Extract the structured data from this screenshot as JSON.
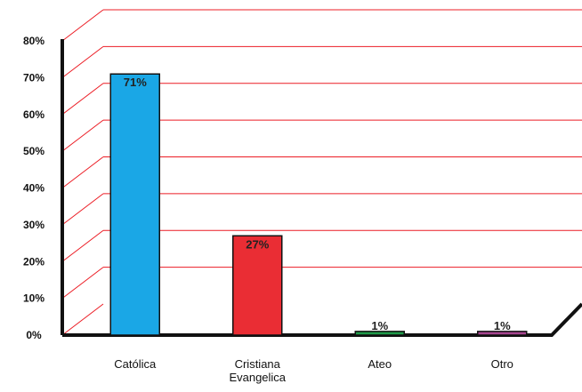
{
  "chart_data": {
    "type": "bar",
    "categories": [
      "Católica",
      "Cristiana Evangelica",
      "Ateo",
      "Otro"
    ],
    "category_lines": [
      [
        "Católica"
      ],
      [
        "Cristiana",
        "Evangelica"
      ],
      [
        "Ateo"
      ],
      [
        "Otro"
      ]
    ],
    "values": [
      71,
      27,
      1,
      1
    ],
    "data_labels": [
      "71%",
      "27%",
      "1%",
      "1%"
    ],
    "bar_colors": [
      "#1aa7e6",
      "#ea2d34",
      "#1f9a49",
      "#a6448f"
    ],
    "y_ticks": [
      "0%",
      "10%",
      "20%",
      "30%",
      "40%",
      "50%",
      "60%",
      "70%",
      "80%"
    ],
    "y_tick_values": [
      0,
      10,
      20,
      30,
      40,
      50,
      60,
      70,
      80
    ],
    "ylim": [
      0,
      80
    ],
    "grid": true,
    "grid_color": "#ec1c24",
    "title": "",
    "xlabel": "",
    "ylabel": ""
  }
}
